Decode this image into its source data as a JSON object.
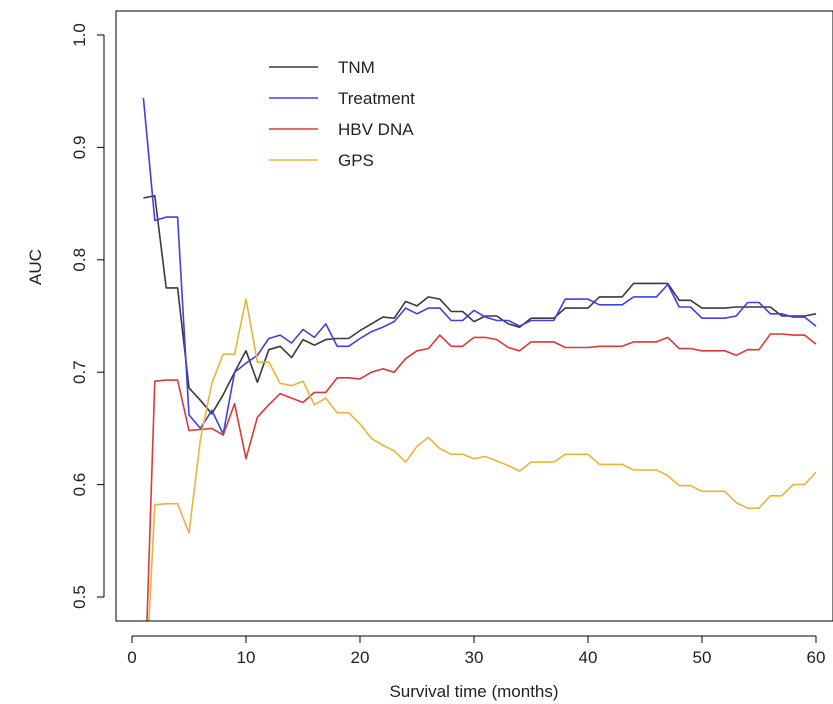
{
  "chart_data": {
    "type": "line",
    "xlabel": "Survival time (months)",
    "ylabel": "AUC",
    "xlim": [
      0,
      60
    ],
    "ylim": [
      0.5,
      1.0
    ],
    "x_ticks": [
      0,
      10,
      20,
      30,
      40,
      50,
      60
    ],
    "y_ticks": [
      0.5,
      0.6,
      0.7,
      0.8,
      0.9,
      1.0
    ],
    "grid": false,
    "legend_position": "top-left",
    "x": [
      1,
      2,
      3,
      4,
      5,
      6,
      7,
      8,
      9,
      10,
      11,
      12,
      13,
      14,
      15,
      16,
      17,
      18,
      19,
      20,
      21,
      22,
      23,
      24,
      25,
      26,
      27,
      28,
      29,
      30,
      31,
      32,
      33,
      34,
      35,
      36,
      37,
      38,
      39,
      40,
      41,
      42,
      43,
      44,
      45,
      46,
      47,
      48,
      49,
      50,
      51,
      52,
      53,
      54,
      55,
      56,
      57,
      58,
      59,
      60
    ],
    "series": [
      {
        "name": "TNM",
        "color": "#3a3a3a",
        "values": [
          0.855,
          0.857,
          0.775,
          0.775,
          0.686,
          0.675,
          0.663,
          0.68,
          0.7,
          0.719,
          0.691,
          0.72,
          0.723,
          0.713,
          0.729,
          0.724,
          0.729,
          0.73,
          0.73,
          0.737,
          0.743,
          0.749,
          0.748,
          0.763,
          0.759,
          0.767,
          0.765,
          0.754,
          0.754,
          0.745,
          0.75,
          0.75,
          0.743,
          0.74,
          0.748,
          0.748,
          0.748,
          0.757,
          0.757,
          0.757,
          0.767,
          0.767,
          0.767,
          0.779,
          0.779,
          0.779,
          0.779,
          0.764,
          0.764,
          0.757,
          0.757,
          0.757,
          0.758,
          0.758,
          0.758,
          0.758,
          0.75,
          0.75,
          0.75,
          0.752
        ]
      },
      {
        "name": "Treatment",
        "color": "#4040e0",
        "values": [
          0.944,
          0.835,
          0.838,
          0.838,
          0.662,
          0.65,
          0.666,
          0.645,
          0.7,
          0.708,
          0.715,
          0.73,
          0.733,
          0.726,
          0.738,
          0.731,
          0.743,
          0.723,
          0.723,
          0.73,
          0.736,
          0.74,
          0.745,
          0.757,
          0.752,
          0.757,
          0.757,
          0.746,
          0.746,
          0.755,
          0.749,
          0.746,
          0.746,
          0.741,
          0.746,
          0.746,
          0.746,
          0.765,
          0.765,
          0.765,
          0.76,
          0.76,
          0.76,
          0.767,
          0.767,
          0.767,
          0.778,
          0.758,
          0.758,
          0.748,
          0.748,
          0.748,
          0.75,
          0.762,
          0.762,
          0.752,
          0.752,
          0.749,
          0.749,
          0.741
        ]
      },
      {
        "name": "HBV DNA",
        "color": "#d83a3a",
        "values": [
          0.38,
          0.692,
          0.693,
          0.693,
          0.648,
          0.649,
          0.65,
          0.644,
          0.672,
          0.623,
          0.66,
          0.671,
          0.681,
          0.677,
          0.673,
          0.682,
          0.682,
          0.695,
          0.695,
          0.694,
          0.7,
          0.703,
          0.7,
          0.712,
          0.719,
          0.721,
          0.733,
          0.723,
          0.723,
          0.731,
          0.731,
          0.729,
          0.722,
          0.719,
          0.727,
          0.727,
          0.727,
          0.722,
          0.722,
          0.722,
          0.723,
          0.723,
          0.723,
          0.727,
          0.727,
          0.727,
          0.731,
          0.721,
          0.721,
          0.719,
          0.719,
          0.719,
          0.715,
          0.72,
          0.72,
          0.734,
          0.734,
          0.733,
          0.733,
          0.725
        ]
      },
      {
        "name": "GPS",
        "color": "#e8b43c",
        "values": [
          0.38,
          0.582,
          0.583,
          0.583,
          0.557,
          0.64,
          0.69,
          0.716,
          0.716,
          0.765,
          0.709,
          0.709,
          0.69,
          0.688,
          0.692,
          0.671,
          0.677,
          0.664,
          0.664,
          0.654,
          0.641,
          0.635,
          0.63,
          0.62,
          0.634,
          0.642,
          0.632,
          0.627,
          0.627,
          0.623,
          0.625,
          0.621,
          0.617,
          0.612,
          0.62,
          0.62,
          0.62,
          0.627,
          0.627,
          0.627,
          0.618,
          0.618,
          0.618,
          0.613,
          0.613,
          0.613,
          0.608,
          0.599,
          0.599,
          0.594,
          0.594,
          0.594,
          0.584,
          0.579,
          0.579,
          0.59,
          0.59,
          0.6,
          0.6,
          0.611
        ]
      }
    ]
  }
}
